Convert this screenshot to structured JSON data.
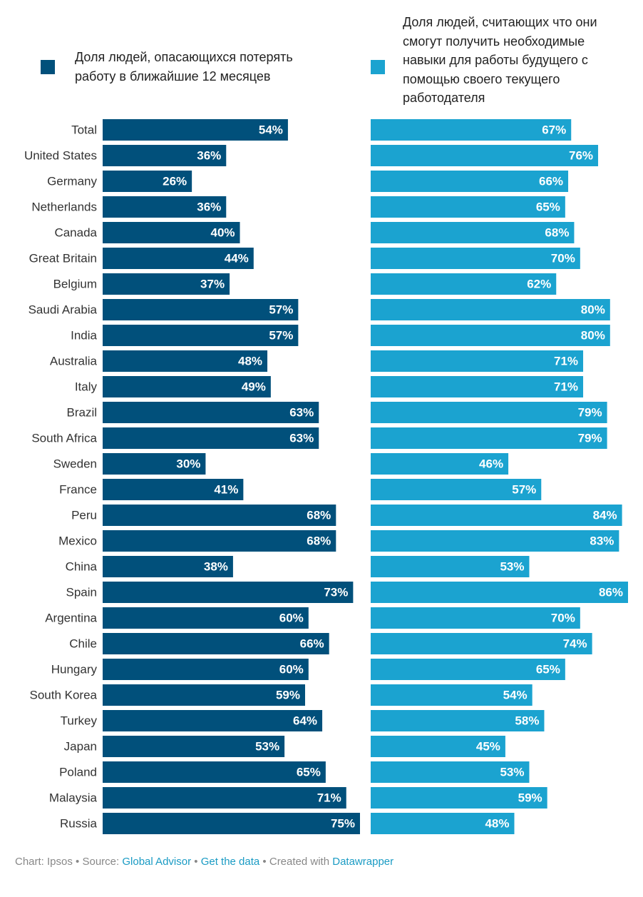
{
  "chart_data": {
    "type": "bar",
    "categories": [
      "Total",
      "United States",
      "Germany",
      "Netherlands",
      "Canada",
      "Great Britain",
      "Belgium",
      "Saudi Arabia",
      "India",
      "Australia",
      "Italy",
      "Brazil",
      "South Africa",
      "Sweden",
      "France",
      "Peru",
      "Mexico",
      "China",
      "Spain",
      "Argentina",
      "Chile",
      "Hungary",
      "South Korea",
      "Turkey",
      "Japan",
      "Poland",
      "Malaysia",
      "Russia"
    ],
    "series": [
      {
        "name": "Доля людей, опасающихся потерять работу в ближайшие 12 месяцев",
        "color": "#01507b",
        "values": [
          54,
          36,
          26,
          36,
          40,
          44,
          37,
          57,
          57,
          48,
          49,
          63,
          63,
          30,
          41,
          68,
          68,
          38,
          73,
          60,
          66,
          60,
          59,
          64,
          53,
          65,
          71,
          75
        ],
        "value_labels": [
          "54%",
          "36%",
          "26%",
          "36%",
          "40%",
          "44%",
          "37%",
          "57%",
          "57%",
          "48%",
          "49%",
          "63%",
          "63%",
          "30%",
          "41%",
          "68%",
          "68%",
          "38%",
          "73%",
          "60%",
          "66%",
          "60%",
          "59%",
          "64%",
          "53%",
          "65%",
          "71%",
          "75%"
        ]
      },
      {
        "name": "Доля людей, считающих что они смогут получить необходимые навыки для работы будущего с помощью своего текущего работодателя",
        "color": "#1ba3d0",
        "values": [
          67,
          76,
          66,
          65,
          68,
          70,
          62,
          80,
          80,
          71,
          71,
          79,
          79,
          46,
          57,
          84,
          83,
          53,
          86,
          70,
          74,
          65,
          54,
          58,
          45,
          53,
          59,
          48
        ],
        "value_labels": [
          "67%",
          "76%",
          "66%",
          "65%",
          "68%",
          "70%",
          "62%",
          "80%",
          "80%",
          "71%",
          "71%",
          "79%",
          "79%",
          "46%",
          "57%",
          "84%",
          "83%",
          "53%",
          "86%",
          "70%",
          "74%",
          "65%",
          "54%",
          "58%",
          "45%",
          "53%",
          "59%",
          "48%"
        ]
      }
    ],
    "footer": {
      "credit": "Chart: Ipsos",
      "separator": "•",
      "source_label": "Source:",
      "source": "Global Advisor",
      "get_data": "Get the data",
      "created_label": "Created with",
      "tool": "Datawrapper"
    }
  }
}
